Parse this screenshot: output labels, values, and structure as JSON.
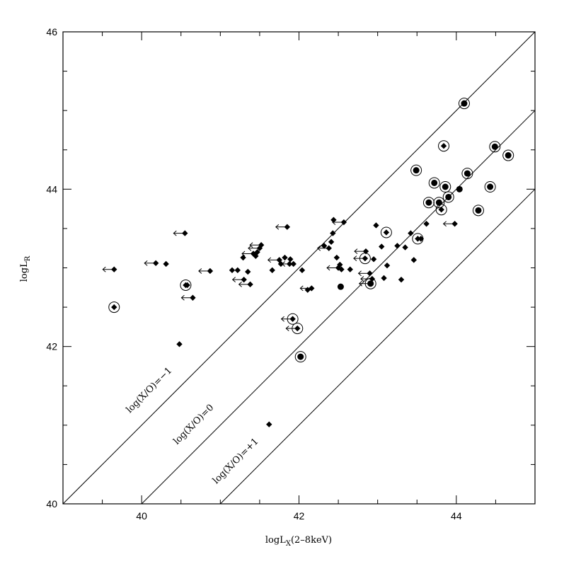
{
  "chart_data": {
    "type": "scatter",
    "title": "",
    "xlabel": "logL",
    "xlabel_sub": "X",
    "xlabel_suffix": "(2–8keV)",
    "ylabel": "logL",
    "ylabel_sub": "R",
    "xlim": [
      39.0,
      45.0
    ],
    "ylim": [
      40.0,
      46.0
    ],
    "x_major_ticks": [
      40,
      42,
      44
    ],
    "y_major_ticks": [
      40,
      42,
      44,
      46
    ],
    "x_tick_labels": [
      "40",
      "42",
      "44"
    ],
    "y_tick_labels": [
      "40",
      "42",
      "44",
      "46"
    ],
    "grid": false,
    "legend": null,
    "reference_lines": [
      {
        "label": "log(X/O)=−1",
        "offset": 1,
        "label_at": [
          39.85,
          41.15
        ]
      },
      {
        "label": "log(X/O)=0",
        "offset": 0,
        "label_at": [
          40.45,
          40.75
        ]
      },
      {
        "label": "log(X/O)=+1",
        "offset": -1,
        "label_at": [
          40.95,
          40.25
        ]
      }
    ],
    "series": [
      {
        "marker": "diamond",
        "points": [
          [
            39.65,
            42.98
          ],
          [
            40.18,
            43.06
          ],
          [
            40.31,
            43.05
          ],
          [
            40.55,
            43.44
          ],
          [
            40.58,
            42.78
          ],
          [
            40.65,
            42.62
          ],
          [
            40.87,
            42.96
          ],
          [
            41.15,
            42.97
          ],
          [
            41.22,
            42.97
          ],
          [
            41.29,
            43.13
          ],
          [
            41.3,
            42.85
          ],
          [
            41.35,
            42.95
          ],
          [
            41.38,
            42.79
          ],
          [
            41.42,
            43.18
          ],
          [
            41.45,
            43.15
          ],
          [
            41.47,
            43.2
          ],
          [
            41.5,
            43.25
          ],
          [
            41.52,
            43.29
          ],
          [
            41.66,
            42.97
          ],
          [
            41.75,
            43.1
          ],
          [
            41.77,
            43.05
          ],
          [
            41.82,
            43.13
          ],
          [
            41.85,
            43.52
          ],
          [
            41.88,
            43.05
          ],
          [
            41.89,
            43.11
          ],
          [
            41.93,
            43.05
          ],
          [
            42.04,
            42.97
          ],
          [
            42.11,
            42.72
          ],
          [
            42.16,
            42.74
          ],
          [
            42.32,
            43.28
          ],
          [
            42.38,
            43.25
          ],
          [
            42.41,
            43.33
          ],
          [
            42.43,
            43.44
          ],
          [
            42.44,
            43.61
          ],
          [
            42.48,
            43.13
          ],
          [
            42.5,
            43.0
          ],
          [
            42.52,
            43.04
          ],
          [
            42.54,
            42.98
          ],
          [
            42.57,
            43.58
          ],
          [
            42.65,
            42.98
          ],
          [
            42.85,
            43.21
          ],
          [
            42.9,
            42.93
          ],
          [
            42.93,
            42.86
          ],
          [
            42.95,
            43.11
          ],
          [
            42.98,
            43.54
          ],
          [
            43.05,
            43.27
          ],
          [
            43.08,
            42.87
          ],
          [
            43.12,
            43.03
          ],
          [
            43.25,
            43.28
          ],
          [
            43.3,
            42.85
          ],
          [
            43.35,
            43.26
          ],
          [
            43.42,
            43.44
          ],
          [
            43.46,
            43.1
          ],
          [
            43.55,
            43.37
          ],
          [
            43.62,
            43.56
          ],
          [
            43.98,
            43.56
          ],
          [
            40.48,
            42.03
          ],
          [
            41.62,
            41.01
          ]
        ]
      },
      {
        "marker": "circled-diamond",
        "points": [
          [
            39.65,
            42.5
          ],
          [
            40.56,
            42.78
          ],
          [
            41.92,
            42.35
          ],
          [
            41.98,
            42.23
          ],
          [
            42.84,
            43.12
          ],
          [
            43.11,
            43.45
          ],
          [
            43.51,
            43.37
          ],
          [
            43.81,
            43.74
          ],
          [
            43.84,
            44.55
          ]
        ]
      },
      {
        "marker": "dot",
        "points": [
          [
            42.53,
            42.76
          ],
          [
            44.04,
            44.0
          ]
        ]
      },
      {
        "marker": "circled-dot",
        "points": [
          [
            42.02,
            41.87
          ],
          [
            42.91,
            42.8
          ],
          [
            43.49,
            44.24
          ],
          [
            43.65,
            43.83
          ],
          [
            43.72,
            44.08
          ],
          [
            43.78,
            43.83
          ],
          [
            43.86,
            44.03
          ],
          [
            43.9,
            43.9
          ],
          [
            44.1,
            45.09
          ],
          [
            44.14,
            44.2
          ],
          [
            44.28,
            43.73
          ],
          [
            44.43,
            44.03
          ],
          [
            44.49,
            44.54
          ],
          [
            44.66,
            44.43
          ]
        ]
      }
    ],
    "upper_limit_arrows": [
      [
        39.65,
        42.98
      ],
      [
        40.18,
        43.06
      ],
      [
        40.55,
        43.44
      ],
      [
        40.65,
        42.62
      ],
      [
        40.87,
        42.96
      ],
      [
        41.3,
        42.85
      ],
      [
        41.38,
        42.79
      ],
      [
        41.42,
        43.18
      ],
      [
        41.5,
        43.25
      ],
      [
        41.52,
        43.29
      ],
      [
        41.75,
        43.1
      ],
      [
        41.85,
        43.52
      ],
      [
        41.93,
        43.05
      ],
      [
        41.92,
        42.35
      ],
      [
        41.98,
        42.23
      ],
      [
        42.16,
        42.74
      ],
      [
        42.38,
        43.25
      ],
      [
        42.5,
        43.0
      ],
      [
        42.57,
        43.58
      ],
      [
        42.84,
        43.12
      ],
      [
        42.85,
        43.21
      ],
      [
        42.9,
        42.93
      ],
      [
        42.93,
        42.86
      ],
      [
        42.91,
        42.8
      ],
      [
        43.98,
        43.56
      ]
    ]
  }
}
